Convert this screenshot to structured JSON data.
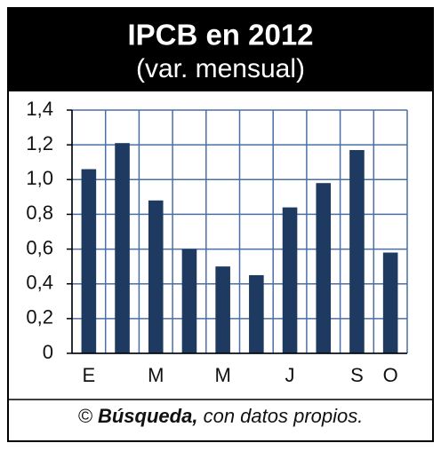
{
  "chart_data": {
    "type": "bar",
    "title": "IPCB en 2012",
    "subtitle": "(var. mensual)",
    "categories": [
      "E",
      null,
      "M",
      null,
      "M",
      null,
      "J",
      null,
      "S",
      "O"
    ],
    "values": [
      1.06,
      1.21,
      0.88,
      0.6,
      0.5,
      0.45,
      0.84,
      0.98,
      1.17,
      0.58
    ],
    "color": "#1f3a60",
    "ylim": [
      0,
      1.4
    ],
    "yticks": [
      0,
      {
        "value": 0.2,
        "label": "0,2"
      },
      {
        "value": 0.4,
        "label": "0,4"
      },
      {
        "value": 0.6,
        "label": "0,6"
      },
      {
        "value": 0.8,
        "label": "0,8"
      },
      {
        "value": 1.0,
        "label": "1,0"
      },
      {
        "value": 1.2,
        "label": "1,2"
      },
      {
        "value": 1.4,
        "label": "1,4"
      }
    ],
    "grid": true,
    "grid_color": "#4a6fa5",
    "source_symbol": "©",
    "source_name": "Búsqueda,",
    "source_text": "con datos propios."
  }
}
